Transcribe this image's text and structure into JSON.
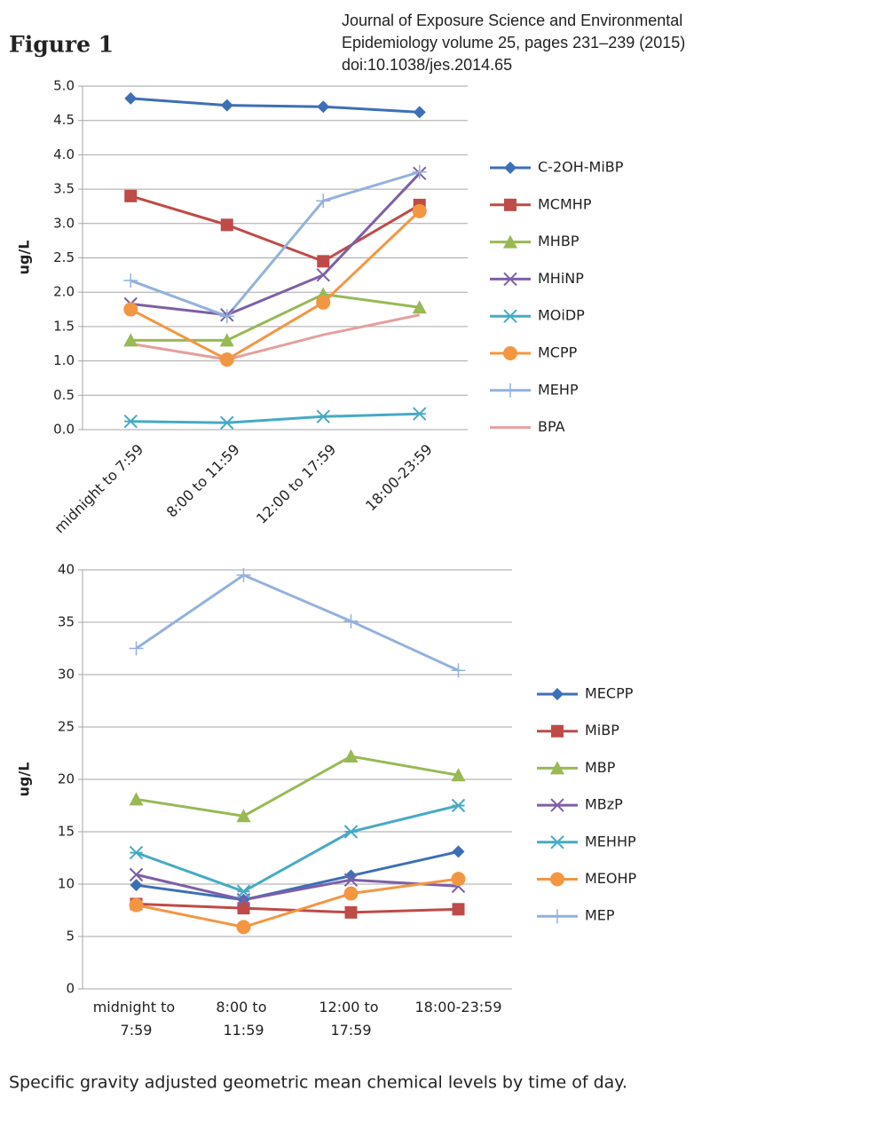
{
  "figure_label": "Figure 1",
  "citation": [
    "Journal of Exposure Science and Environmental",
    "Epidemiology volume 25, pages 231–239 (2015)",
    "doi:10.1038/jes.2014.65"
  ],
  "caption": "Specific gravity adjusted geometric mean chemical levels by time of day.",
  "chart_data": [
    {
      "type": "line",
      "ylabel": "ug/L",
      "categories": [
        "midnight to 7:59",
        "8:00 to 11:59",
        "12:00 to 17:59",
        "18:00-23:59"
      ],
      "ylim": [
        0,
        5
      ],
      "yticks": [
        {
          "value": 0,
          "label": "0.0"
        },
        0.5,
        {
          "value": 1,
          "label": "1.0"
        },
        1.5,
        {
          "value": 2,
          "label": "2.0"
        },
        2.5,
        {
          "value": 3,
          "label": "3.0"
        },
        3.5,
        {
          "value": 4,
          "label": "4.0"
        },
        4.5,
        {
          "value": 5,
          "label": "5.0"
        }
      ],
      "grid": true,
      "legend": "right",
      "series": [
        {
          "name": "C-2OH-MiBP",
          "color": "#3d6fb6",
          "marker": "diamond",
          "values": [
            4.82,
            4.72,
            4.7,
            4.62
          ]
        },
        {
          "name": "MCMHP",
          "color": "#be4b48",
          "marker": "square",
          "values": [
            3.4,
            2.98,
            2.45,
            3.27
          ]
        },
        {
          "name": "MHBP",
          "color": "#98b954",
          "marker": "triangle",
          "values": [
            1.3,
            1.3,
            1.97,
            1.78
          ]
        },
        {
          "name": "MHiNP",
          "color": "#7d5fa6",
          "marker": "x",
          "values": [
            1.83,
            1.67,
            2.25,
            3.73
          ]
        },
        {
          "name": "MOiDP",
          "color": "#46aac4",
          "marker": "asterisk",
          "values": [
            0.12,
            0.1,
            0.19,
            0.23
          ]
        },
        {
          "name": "MCPP",
          "color": "#f39642",
          "marker": "circle",
          "values": [
            1.75,
            1.02,
            1.85,
            3.18
          ]
        },
        {
          "name": "MEHP",
          "color": "#93b1dd",
          "marker": "plus",
          "values": [
            2.17,
            1.65,
            3.33,
            3.75
          ]
        },
        {
          "name": "BPA",
          "color": "#e3a09e",
          "marker": "none",
          "values": [
            1.25,
            1.02,
            1.38,
            1.67
          ]
        }
      ]
    },
    {
      "type": "line",
      "ylabel": "ug/L",
      "categories": [
        "midnight to 7:59",
        "8:00 to 11:59",
        "12:00 to 17:59",
        "18:00-23:59"
      ],
      "ylim": [
        0,
        40
      ],
      "yticks": [
        0,
        5,
        10,
        15,
        20,
        25,
        30,
        35,
        40
      ],
      "grid": true,
      "legend": "right",
      "series": [
        {
          "name": "MECPP",
          "color": "#3d6fb6",
          "marker": "diamond",
          "values": [
            9.9,
            8.5,
            10.8,
            13.1
          ]
        },
        {
          "name": "MiBP",
          "color": "#be4b48",
          "marker": "square",
          "values": [
            8.1,
            7.7,
            7.3,
            7.6
          ]
        },
        {
          "name": "MBP",
          "color": "#98b954",
          "marker": "triangle",
          "values": [
            18.1,
            16.5,
            22.2,
            20.4
          ]
        },
        {
          "name": "MBzP",
          "color": "#7d5fa6",
          "marker": "x",
          "values": [
            10.9,
            8.5,
            10.4,
            9.8
          ]
        },
        {
          "name": "MEHHP",
          "color": "#46aac4",
          "marker": "asterisk",
          "values": [
            13.0,
            9.3,
            15.0,
            17.5
          ]
        },
        {
          "name": "MEOHP",
          "color": "#f39642",
          "marker": "circle",
          "values": [
            8.0,
            5.9,
            9.1,
            10.5
          ]
        },
        {
          "name": "MEP",
          "color": "#93b1dd",
          "marker": "plus",
          "values": [
            32.5,
            39.5,
            35.1,
            30.4
          ]
        }
      ]
    }
  ]
}
